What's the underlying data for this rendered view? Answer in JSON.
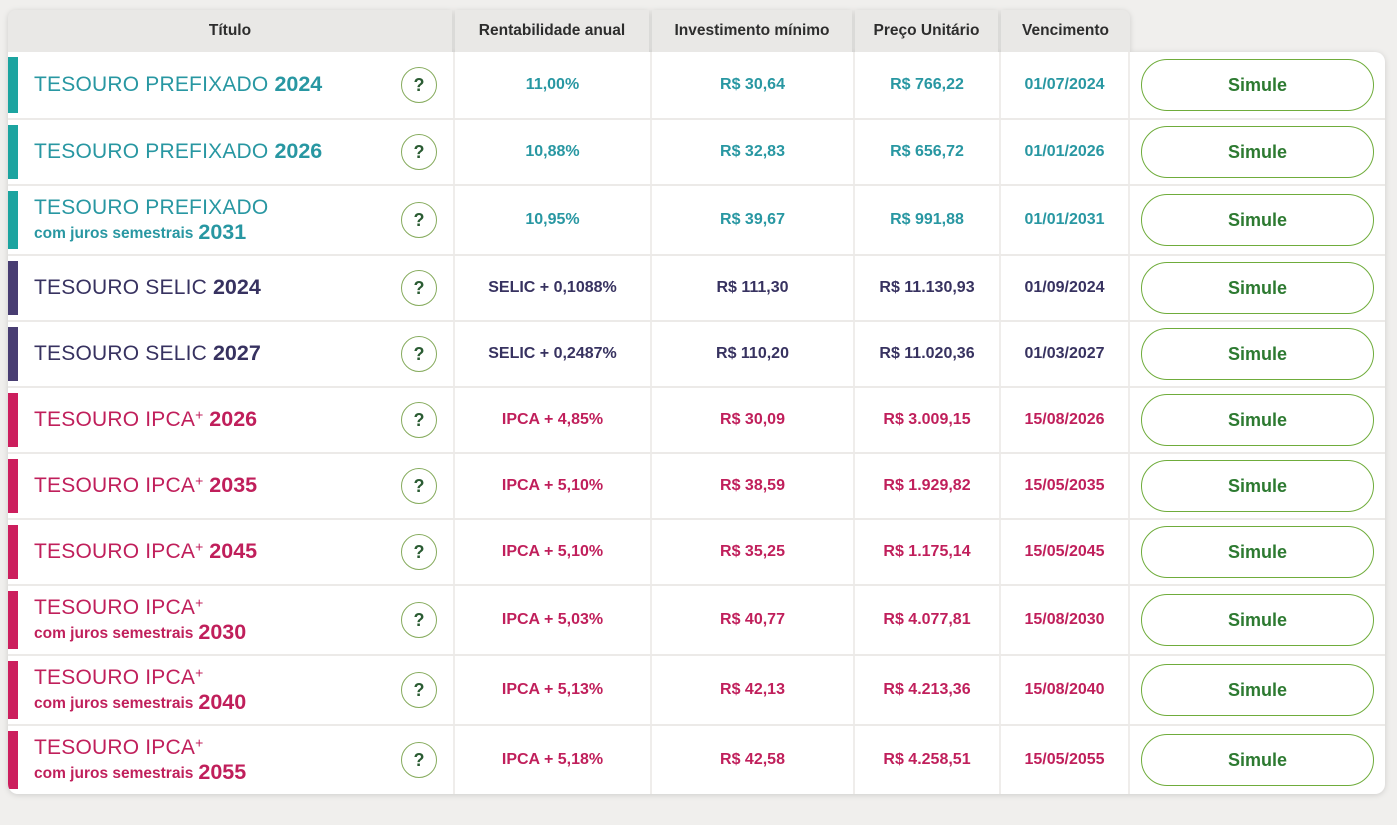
{
  "colors": {
    "page-bg": "#f0efed",
    "header-bg": "#e9e8e6",
    "header-text": "#2d2d2d",
    "teal-bar": "#1ca4a0",
    "teal-text": "#2897a2",
    "selic-bar": "#483d72",
    "selic-text": "#373260",
    "ipca-bar": "#cc1e5d",
    "ipca-text": "#c01f5b",
    "green-border": "#6fac3b",
    "green-text": "#2d7a31"
  },
  "table": {
    "columns": [
      "Título",
      "Rentabilidade anual",
      "Investimento mínimo",
      "Preço Unitário",
      "Vencimento"
    ],
    "help_icon": "?",
    "simulate_label": "Simule",
    "bonds": [
      {
        "group": "prefixado",
        "title_main": "TESOURO PREFIXADO",
        "title_sup": "",
        "title_year": "2024",
        "subtitle": "",
        "subtitle_year": "",
        "rate": "11,00%",
        "min_investment": "R$ 30,64",
        "unit_price": "R$ 766,22",
        "maturity": "01/07/2024"
      },
      {
        "group": "prefixado",
        "title_main": "TESOURO PREFIXADO",
        "title_sup": "",
        "title_year": "2026",
        "subtitle": "",
        "subtitle_year": "",
        "rate": "10,88%",
        "min_investment": "R$ 32,83",
        "unit_price": "R$ 656,72",
        "maturity": "01/01/2026"
      },
      {
        "group": "prefixado",
        "title_main": "TESOURO PREFIXADO",
        "title_sup": "",
        "title_year": "",
        "subtitle": "com juros semestrais",
        "subtitle_year": "2031",
        "rate": "10,95%",
        "min_investment": "R$ 39,67",
        "unit_price": "R$ 991,88",
        "maturity": "01/01/2031"
      },
      {
        "group": "selic",
        "title_main": "TESOURO SELIC",
        "title_sup": "",
        "title_year": "2024",
        "subtitle": "",
        "subtitle_year": "",
        "rate": "SELIC + 0,1088%",
        "min_investment": "R$ 111,30",
        "unit_price": "R$ 11.130,93",
        "maturity": "01/09/2024"
      },
      {
        "group": "selic",
        "title_main": "TESOURO SELIC",
        "title_sup": "",
        "title_year": "2027",
        "subtitle": "",
        "subtitle_year": "",
        "rate": "SELIC + 0,2487%",
        "min_investment": "R$ 110,20",
        "unit_price": "R$ 11.020,36",
        "maturity": "01/03/2027"
      },
      {
        "group": "ipca",
        "title_main": "TESOURO IPCA",
        "title_sup": "+",
        "title_year": "2026",
        "subtitle": "",
        "subtitle_year": "",
        "rate": "IPCA + 4,85%",
        "min_investment": "R$ 30,09",
        "unit_price": "R$ 3.009,15",
        "maturity": "15/08/2026"
      },
      {
        "group": "ipca",
        "title_main": "TESOURO IPCA",
        "title_sup": "+",
        "title_year": "2035",
        "subtitle": "",
        "subtitle_year": "",
        "rate": "IPCA + 5,10%",
        "min_investment": "R$ 38,59",
        "unit_price": "R$ 1.929,82",
        "maturity": "15/05/2035"
      },
      {
        "group": "ipca",
        "title_main": "TESOURO IPCA",
        "title_sup": "+",
        "title_year": "2045",
        "subtitle": "",
        "subtitle_year": "",
        "rate": "IPCA + 5,10%",
        "min_investment": "R$ 35,25",
        "unit_price": "R$ 1.175,14",
        "maturity": "15/05/2045"
      },
      {
        "group": "ipca",
        "title_main": "TESOURO IPCA",
        "title_sup": "+",
        "title_year": "",
        "subtitle": "com juros semestrais",
        "subtitle_year": "2030",
        "rate": "IPCA + 5,03%",
        "min_investment": "R$ 40,77",
        "unit_price": "R$ 4.077,81",
        "maturity": "15/08/2030"
      },
      {
        "group": "ipca",
        "title_main": "TESOURO IPCA",
        "title_sup": "+",
        "title_year": "",
        "subtitle": "com juros semestrais",
        "subtitle_year": "2040",
        "rate": "IPCA + 5,13%",
        "min_investment": "R$ 42,13",
        "unit_price": "R$ 4.213,36",
        "maturity": "15/08/2040"
      },
      {
        "group": "ipca",
        "title_main": "TESOURO IPCA",
        "title_sup": "+",
        "title_year": "",
        "subtitle": "com juros semestrais",
        "subtitle_year": "2055",
        "rate": "IPCA + 5,18%",
        "min_investment": "R$ 42,58",
        "unit_price": "R$ 4.258,51",
        "maturity": "15/05/2055"
      }
    ]
  }
}
